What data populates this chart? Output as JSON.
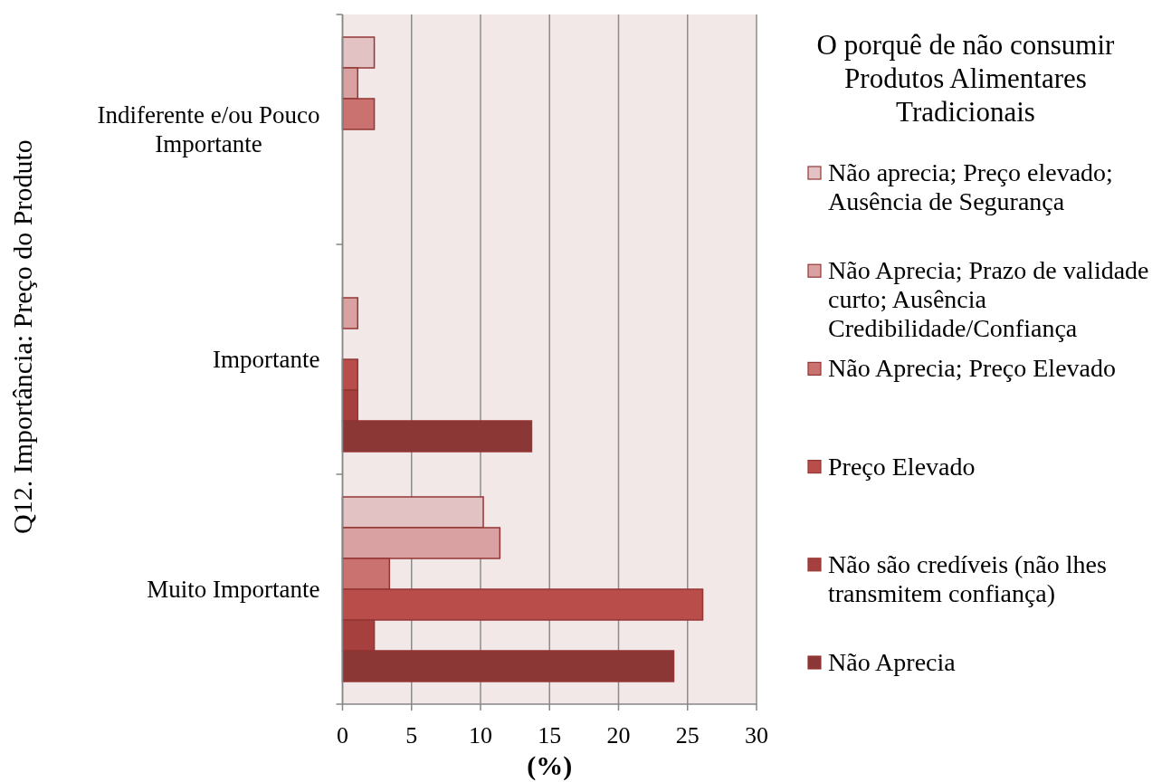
{
  "chart_data": {
    "type": "bar",
    "orientation": "horizontal",
    "ylabel": "Q12. Importância: Preço do Produto",
    "xlabel": "(%)",
    "legend_title": "O porquê de não consumir Produtos Alimentares Tradicionais",
    "categories": [
      "Indiferente e/ou Pouco Importante",
      "Importante",
      "Muito Importante"
    ],
    "series": [
      {
        "name": "Não aprecia; Preço elevado; Ausência de Segurança",
        "color": "#e3c2c4",
        "values": [
          2.3,
          0,
          10.2
        ]
      },
      {
        "name": "Não Aprecia; Prazo de validade curto; Ausência Credibilidade/Confiança",
        "color": "#d9a1a2",
        "values": [
          1.1,
          1.1,
          11.4
        ]
      },
      {
        "name": "Não Aprecia; Preço Elevado",
        "color": "#c97270",
        "values": [
          2.3,
          0,
          3.4
        ]
      },
      {
        "name": "Preço Elevado",
        "color": "#b84d4a",
        "values": [
          0,
          1.1,
          26.1
        ]
      },
      {
        "name": "Não são credíveis (não lhes transmitem confiança)",
        "color": "#a5403e",
        "values": [
          0,
          1.1,
          2.3
        ]
      },
      {
        "name": "Não Aprecia",
        "color": "#8b3735",
        "values": [
          0,
          13.7,
          24.0
        ]
      }
    ],
    "xlim": [
      0,
      30
    ],
    "xticks": [
      0,
      5,
      10,
      15,
      20,
      25,
      30
    ],
    "grid": "x",
    "legend": "right"
  }
}
